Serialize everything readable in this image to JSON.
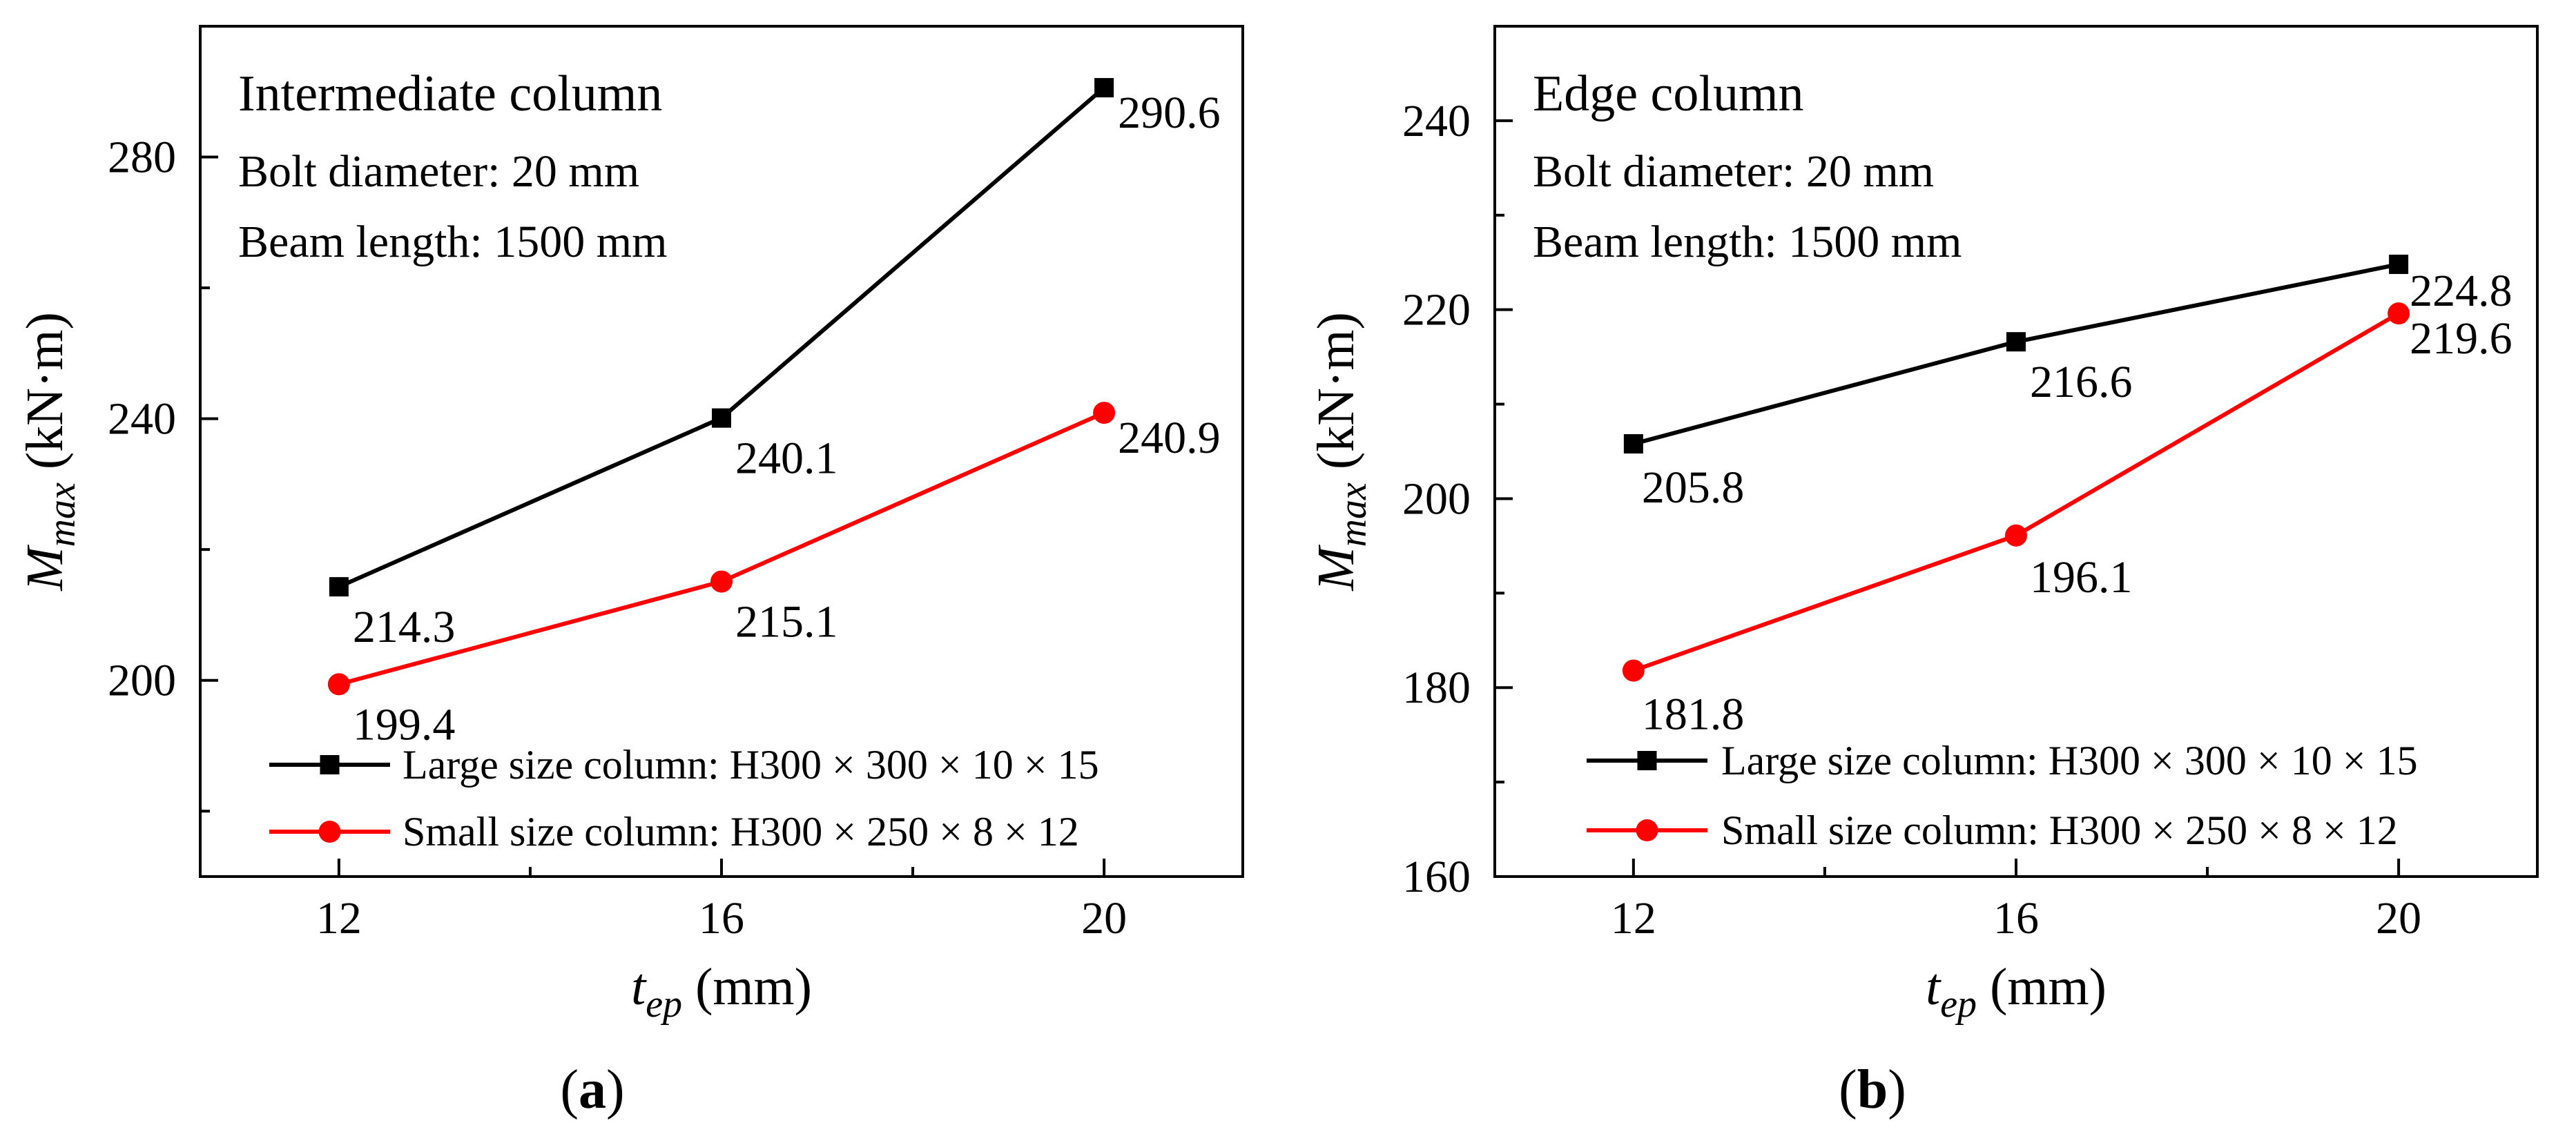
{
  "chart_data": [
    {
      "type": "line",
      "panel_label": "a",
      "title": "Intermediate column",
      "notes": [
        "Bolt diameter: 20 mm",
        "Beam length: 1500 mm"
      ],
      "xlabel": "t",
      "xlabel_sub": "ep",
      "xlabel_unit": " (mm)",
      "ylabel": "M",
      "ylabel_sub": "max",
      "ylabel_unit": " (kN·m)",
      "categories": [
        "12",
        "16",
        "20"
      ],
      "x": [
        12,
        16,
        20
      ],
      "xlim": [
        10.55,
        21.45
      ],
      "ylim": [
        170,
        300
      ],
      "yticks": [
        200,
        240,
        280
      ],
      "yticks_minor": [
        180,
        220,
        260,
        300
      ],
      "xticks_minor": [
        14,
        18
      ],
      "legend_position": "bottom-left",
      "series": [
        {
          "name": "Large size column: H300 × 300 × 10 × 15",
          "color": "#000000",
          "marker": "square",
          "values": [
            214.3,
            240.1,
            290.6
          ],
          "labels": [
            "214.3",
            "240.1",
            "290.6"
          ]
        },
        {
          "name": "Small size column: H300 × 250 × 8 × 12",
          "color": "#ff0000",
          "marker": "circle",
          "values": [
            199.4,
            215.1,
            240.9
          ],
          "labels": [
            "199.4",
            "215.1",
            "240.9"
          ]
        }
      ]
    },
    {
      "type": "line",
      "panel_label": "b",
      "title": "Edge column",
      "notes": [
        "Bolt diameter: 20 mm",
        "Beam length: 1500 mm"
      ],
      "xlabel": "t",
      "xlabel_sub": "ep",
      "xlabel_unit": " (mm)",
      "ylabel": "M",
      "ylabel_sub": "max",
      "ylabel_unit": " (kN·m)",
      "categories": [
        "12",
        "16",
        "20"
      ],
      "x": [
        12,
        16,
        20
      ],
      "xlim": [
        10.55,
        21.45
      ],
      "ylim": [
        160,
        250
      ],
      "yticks": [
        160,
        180,
        200,
        220,
        240
      ],
      "yticks_minor": [
        170,
        190,
        210,
        230,
        250
      ],
      "xticks_minor": [
        14,
        18
      ],
      "legend_position": "bottom-left",
      "series": [
        {
          "name": "Large size column: H300 × 300 × 10 × 15",
          "color": "#000000",
          "marker": "square",
          "values": [
            205.8,
            216.6,
            224.8
          ],
          "labels": [
            "205.8",
            "216.6",
            "224.8"
          ]
        },
        {
          "name": "Small size column: H300 × 250 × 8 × 12",
          "color": "#ff0000",
          "marker": "circle",
          "values": [
            181.8,
            196.1,
            219.6
          ],
          "labels": [
            "181.8",
            "196.1",
            "219.6"
          ]
        }
      ]
    }
  ]
}
